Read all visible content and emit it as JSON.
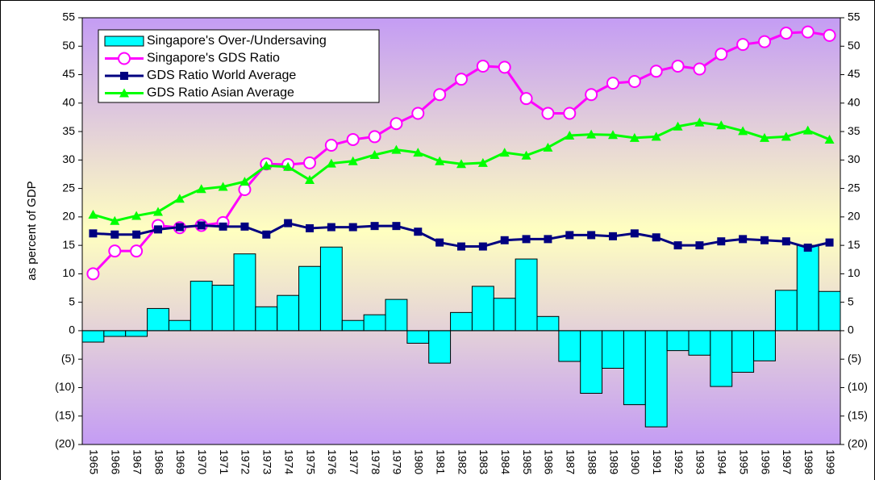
{
  "chart_data": {
    "type": "combo",
    "y_axis_label": "as percent of GDP",
    "categories": [
      "1965",
      "1966",
      "1967",
      "1968",
      "1969",
      "1970",
      "1971",
      "1972",
      "1973",
      "1974",
      "1975",
      "1976",
      "1977",
      "1978",
      "1979",
      "1980",
      "1981",
      "1982",
      "1983",
      "1984",
      "1985",
      "1986",
      "1987",
      "1988",
      "1989",
      "1990",
      "1991",
      "1992",
      "1993",
      "1994",
      "1995",
      "1996",
      "1997",
      "1998",
      "1999"
    ],
    "ylim": [
      -20,
      55
    ],
    "yticks": [
      {
        "value": -20,
        "label": "(20)"
      },
      {
        "value": -15,
        "label": "(15)"
      },
      {
        "value": -10,
        "label": "(10)"
      },
      {
        "value": -5,
        "label": "(5)"
      },
      0,
      5,
      10,
      15,
      20,
      25,
      30,
      35,
      40,
      45,
      50,
      55
    ],
    "y2lim": [
      -20,
      55
    ],
    "y2ticks": [
      {
        "value": -20,
        "label": "(20)"
      },
      {
        "value": -15,
        "label": "(15)"
      },
      {
        "value": -10,
        "label": "(10)"
      },
      {
        "value": -5,
        "label": "(5)"
      },
      0,
      5,
      10,
      15,
      20,
      25,
      30,
      35,
      40,
      45,
      50,
      55
    ],
    "negative_tick_color": "#ff0000",
    "series": [
      {
        "name": "Singapore's Over-/Undersaving",
        "type": "bar",
        "color": "#00ffff",
        "values": [
          -2,
          -1,
          -1,
          3.9,
          1.8,
          8.7,
          8,
          13.5,
          4.2,
          6.2,
          11.3,
          14.7,
          1.8,
          2.8,
          5.5,
          -2.2,
          -5.7,
          3.2,
          7.8,
          5.7,
          12.6,
          2.5,
          -5.4,
          -11,
          -6.6,
          -13,
          -16.9,
          -3.5,
          -4.3,
          -9.8,
          -7.3,
          -5.3,
          7.1,
          15,
          6.9
        ]
      },
      {
        "name": "Singapore's GDS Ratio",
        "type": "line",
        "marker": "circle",
        "color": "#ff00ff",
        "values": [
          10,
          14,
          14,
          18.5,
          18.1,
          18.5,
          19,
          24.8,
          29.3,
          29.2,
          29.5,
          32.6,
          33.6,
          34.1,
          36.4,
          38.2,
          41.5,
          44.2,
          46.5,
          46.3,
          40.8,
          38.2,
          38.2,
          41.5,
          43.5,
          43.8,
          45.6,
          46.5,
          46,
          48.6,
          50.3,
          50.8,
          52.3,
          52.5,
          51.9
        ]
      },
      {
        "name": "GDS Ratio World Average",
        "type": "line",
        "marker": "square",
        "color": "#000080",
        "values": [
          17.1,
          16.9,
          16.9,
          17.8,
          18.2,
          18.5,
          18.3,
          18.3,
          16.9,
          18.9,
          18,
          18.2,
          18.2,
          18.4,
          18.4,
          17.4,
          15.5,
          14.8,
          14.8,
          15.9,
          16.1,
          16.1,
          16.8,
          16.8,
          16.6,
          17.1,
          16.4,
          15,
          15,
          15.7,
          16.1,
          15.9,
          15.7,
          14.6,
          15.5
        ]
      },
      {
        "name": "GDS Ratio Asian Average",
        "type": "line",
        "marker": "triangle",
        "color": "#00ff00",
        "values": [
          20.4,
          19.3,
          20.2,
          20.9,
          23.2,
          24.9,
          25.3,
          26.2,
          29,
          28.8,
          26.5,
          29.4,
          29.8,
          30.9,
          31.8,
          31.3,
          29.8,
          29.3,
          29.5,
          31.3,
          30.8,
          32.2,
          34.3,
          34.5,
          34.4,
          33.9,
          34.1,
          35.9,
          36.6,
          36.1,
          35.1,
          33.9,
          34.1,
          35.2,
          33.6
        ]
      }
    ]
  }
}
